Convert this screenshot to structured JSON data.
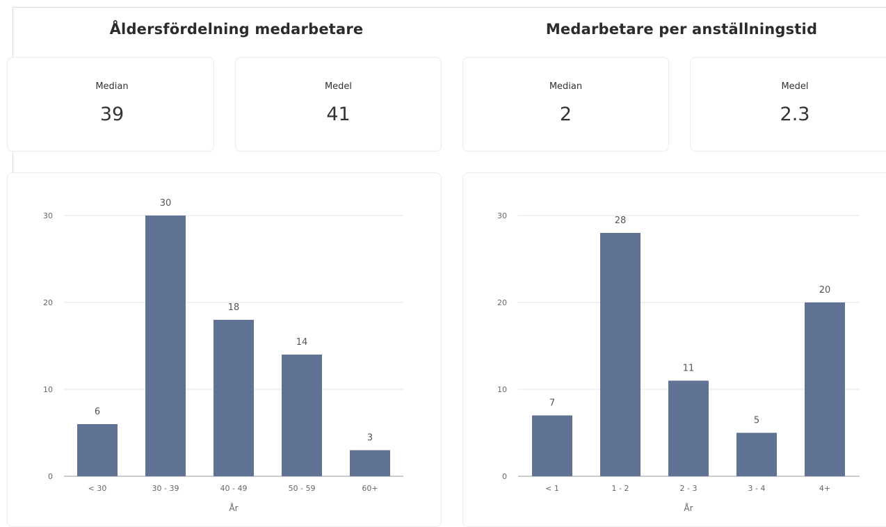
{
  "left": {
    "title": "Åldersfördelning medarbetare",
    "median_label": "Median",
    "median_value": "39",
    "mean_label": "Medel",
    "mean_value": "41"
  },
  "right": {
    "title": "Medarbetare per anställningstid",
    "median_label": "Median",
    "median_value": "2",
    "mean_label": "Medel",
    "mean_value": "2.3"
  },
  "colors": {
    "bar": "#617394",
    "grid": "#e4e4e4",
    "axis": "#9a9a9a",
    "label": "#666666"
  },
  "chart_data": [
    {
      "type": "bar",
      "title": "Åldersfördelning medarbetare",
      "categories": [
        "< 30",
        "30 - 39",
        "40 - 49",
        "50 - 59",
        "60+"
      ],
      "values": [
        6,
        30,
        18,
        14,
        3
      ],
      "xlabel": "År",
      "ylabel": "",
      "ylim": [
        0,
        30
      ],
      "yticks": [
        0,
        10,
        20,
        30
      ],
      "grid": true
    },
    {
      "type": "bar",
      "title": "Medarbetare per anställningstid",
      "categories": [
        "< 1",
        "1 - 2",
        "2 - 3",
        "3 - 4",
        "4+"
      ],
      "values": [
        7,
        28,
        11,
        5,
        20
      ],
      "xlabel": "År",
      "ylabel": "",
      "ylim": [
        0,
        30
      ],
      "yticks": [
        0,
        10,
        20,
        30
      ],
      "grid": true
    }
  ]
}
